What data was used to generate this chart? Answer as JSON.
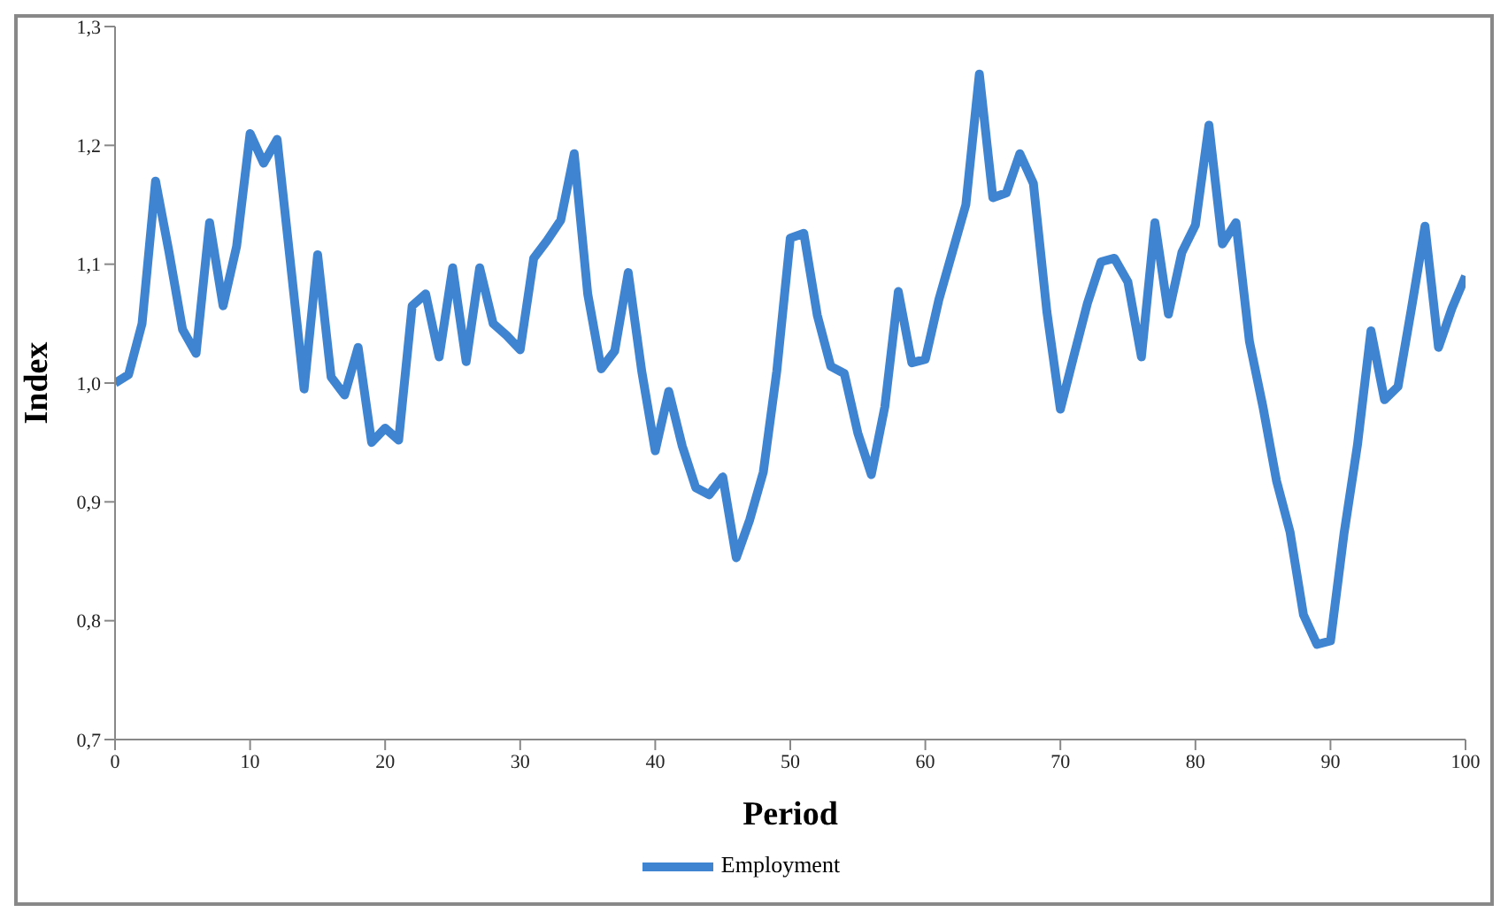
{
  "chart_data": {
    "type": "line",
    "xlabel": "Period",
    "ylabel": "Index",
    "x": [
      0,
      1,
      2,
      3,
      4,
      5,
      6,
      7,
      8,
      9,
      10,
      11,
      12,
      13,
      14,
      15,
      16,
      17,
      18,
      19,
      20,
      21,
      22,
      23,
      24,
      25,
      26,
      27,
      28,
      29,
      30,
      31,
      32,
      33,
      34,
      35,
      36,
      37,
      38,
      39,
      40,
      41,
      42,
      43,
      44,
      45,
      46,
      47,
      48,
      49,
      50,
      51,
      52,
      53,
      54,
      55,
      56,
      57,
      58,
      59,
      60,
      61,
      62,
      63,
      64,
      65,
      66,
      67,
      68,
      69,
      70,
      71,
      72,
      73,
      74,
      75,
      76,
      77,
      78,
      79,
      80,
      81,
      82,
      83,
      84,
      85,
      86,
      87,
      88,
      89,
      90,
      91,
      92,
      93,
      94,
      95,
      96,
      97,
      98,
      99,
      100
    ],
    "series": [
      {
        "name": "Employment",
        "color": "#3f84d0",
        "values": [
          1.0,
          1.007,
          1.05,
          1.17,
          1.11,
          1.045,
          1.025,
          1.135,
          1.065,
          1.115,
          1.21,
          1.185,
          1.205,
          1.1,
          0.995,
          1.108,
          1.005,
          0.99,
          1.03,
          0.95,
          0.962,
          0.952,
          1.065,
          1.075,
          1.022,
          1.097,
          1.018,
          1.097,
          1.05,
          1.04,
          1.028,
          1.105,
          1.12,
          1.137,
          1.193,
          1.075,
          1.012,
          1.027,
          1.093,
          1.01,
          0.943,
          0.993,
          0.947,
          0.912,
          0.906,
          0.921,
          0.853,
          0.885,
          0.925,
          1.01,
          1.122,
          1.126,
          1.057,
          1.014,
          1.008,
          0.958,
          0.923,
          0.98,
          1.077,
          1.017,
          1.02,
          1.07,
          1.11,
          1.15,
          1.26,
          1.156,
          1.16,
          1.193,
          1.168,
          1.06,
          0.978,
          1.023,
          1.067,
          1.102,
          1.105,
          1.085,
          1.022,
          1.135,
          1.058,
          1.11,
          1.133,
          1.217,
          1.117,
          1.135,
          1.035,
          0.98,
          0.918,
          0.875,
          0.805,
          0.78,
          0.783,
          0.873,
          0.948,
          1.044,
          0.986,
          0.997,
          1.063,
          1.132,
          1.03,
          1.063,
          1.09
        ]
      }
    ],
    "xlim": [
      0,
      100
    ],
    "xticks": [
      0,
      10,
      20,
      30,
      40,
      50,
      60,
      70,
      80,
      90,
      100
    ],
    "ylim": [
      0.7,
      1.3
    ],
    "yticks": [
      {
        "value": 0.7,
        "label": "0,7"
      },
      {
        "value": 0.8,
        "label": "0,8"
      },
      {
        "value": 0.9,
        "label": "0,9"
      },
      {
        "value": 1.0,
        "label": "1,0"
      },
      {
        "value": 1.1,
        "label": "1,1"
      },
      {
        "value": 1.2,
        "label": "1,2"
      },
      {
        "value": 1.3,
        "label": "1,3"
      }
    ],
    "grid": false,
    "legend": "bottom",
    "marker": "none",
    "line_style": "solid"
  }
}
